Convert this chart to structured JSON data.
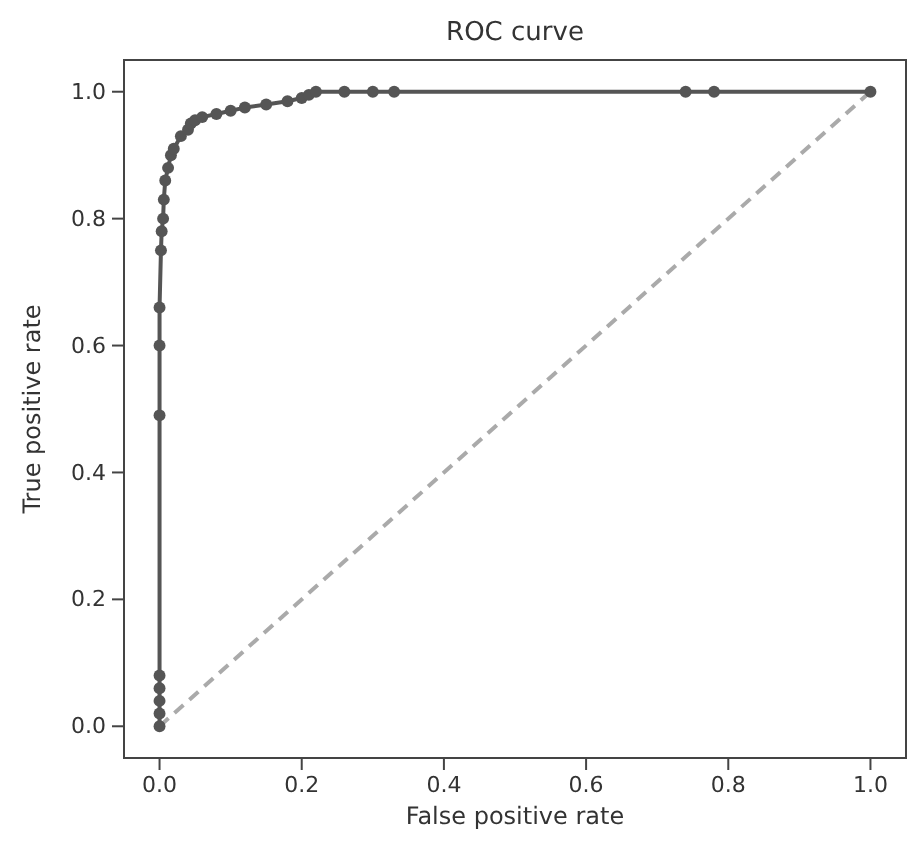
{
  "chart_data": {
    "type": "line",
    "title": "ROC curve",
    "xlabel": "False positive rate",
    "ylabel": "True positive rate",
    "xlim": [
      -0.05,
      1.05
    ],
    "ylim": [
      -0.05,
      1.05
    ],
    "xticks": [
      {
        "value": 0,
        "label": "0.0"
      },
      {
        "value": 0.2,
        "label": "0.2"
      },
      {
        "value": 0.4,
        "label": "0.4"
      },
      {
        "value": 0.6,
        "label": "0.6"
      },
      {
        "value": 0.8,
        "label": "0.8"
      },
      {
        "value": 1,
        "label": "1.0"
      }
    ],
    "yticks": [
      {
        "value": 0,
        "label": "0.0"
      },
      {
        "value": 0.2,
        "label": "0.2"
      },
      {
        "value": 0.4,
        "label": "0.4"
      },
      {
        "value": 0.6,
        "label": "0.6"
      },
      {
        "value": 0.8,
        "label": "0.8"
      },
      {
        "value": 1,
        "label": "1.0"
      }
    ],
    "grid": false,
    "series": [
      {
        "color": "#aaaaaa",
        "line_style": "dashed",
        "marker": "none",
        "x": [
          0,
          1
        ],
        "values": [
          0,
          1
        ]
      },
      {
        "color": "#555555",
        "line_style": "solid",
        "marker": "circle",
        "x": [
          0,
          0,
          0,
          0,
          0,
          0,
          0,
          0,
          0.002,
          0.003,
          0.005,
          0.006,
          0.008,
          0.012,
          0.016,
          0.02,
          0.03,
          0.04,
          0.044,
          0.05,
          0.06,
          0.08,
          0.1,
          0.12,
          0.15,
          0.18,
          0.2,
          0.21,
          0.22,
          0.26,
          0.3,
          0.33,
          0.74,
          0.78,
          1
        ],
        "values": [
          0,
          0.02,
          0.04,
          0.06,
          0.08,
          0.49,
          0.6,
          0.66,
          0.75,
          0.78,
          0.8,
          0.83,
          0.86,
          0.88,
          0.9,
          0.91,
          0.93,
          0.94,
          0.95,
          0.955,
          0.96,
          0.965,
          0.97,
          0.975,
          0.98,
          0.985,
          0.99,
          0.995,
          1,
          1,
          1,
          1,
          1,
          1,
          1
        ]
      }
    ]
  }
}
